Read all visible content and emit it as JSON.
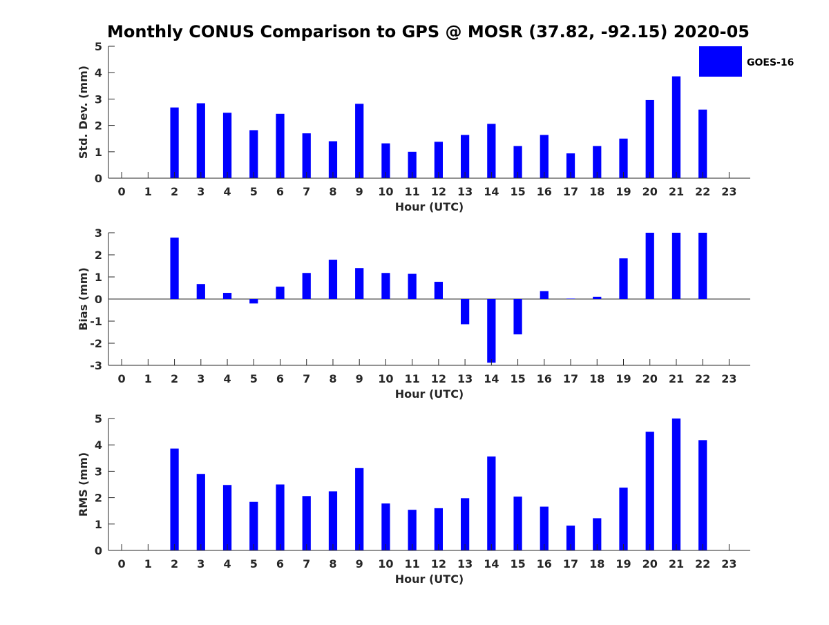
{
  "title": "Monthly CONUS Comparison to GPS @ MOSR (37.82, -92.15) 2020-05",
  "legend": {
    "label": "GOES-16",
    "placement": "top-right",
    "color": "#0000ff"
  },
  "colors": {
    "bar": "#0000ff",
    "axis": "#262626",
    "background": "#ffffff"
  },
  "chart_data": [
    {
      "type": "bar",
      "xlabel": "Hour (UTC)",
      "ylabel": "Std. Dev. (mm)",
      "ylim": [
        0,
        5
      ],
      "yticks": [
        "0",
        "1",
        "2",
        "3",
        "4",
        "5"
      ],
      "categories": [
        "0",
        "1",
        "2",
        "3",
        "4",
        "5",
        "6",
        "7",
        "8",
        "9",
        "10",
        "11",
        "12",
        "13",
        "14",
        "15",
        "16",
        "17",
        "18",
        "19",
        "20",
        "21",
        "22",
        "23"
      ],
      "series": [
        {
          "name": "GOES-16",
          "values": [
            null,
            null,
            2.68,
            2.84,
            2.48,
            1.82,
            2.44,
            1.7,
            1.4,
            2.82,
            1.32,
            1.0,
            1.38,
            1.64,
            2.06,
            1.22,
            1.64,
            0.94,
            1.22,
            1.5,
            2.96,
            3.86,
            2.6,
            null
          ]
        }
      ],
      "grid": false
    },
    {
      "type": "bar",
      "xlabel": "Hour (UTC)",
      "ylabel": "Bias (mm)",
      "ylim": [
        -3,
        3
      ],
      "yticks": [
        "-3",
        "-2",
        "-1",
        "0",
        "1",
        "2",
        "3"
      ],
      "categories": [
        "0",
        "1",
        "2",
        "3",
        "4",
        "5",
        "6",
        "7",
        "8",
        "9",
        "10",
        "11",
        "12",
        "13",
        "14",
        "15",
        "16",
        "17",
        "18",
        "19",
        "20",
        "21",
        "22",
        "23"
      ],
      "series": [
        {
          "name": "GOES-16",
          "values": [
            null,
            null,
            2.78,
            0.68,
            0.28,
            -0.2,
            0.56,
            1.18,
            1.78,
            1.4,
            1.18,
            1.14,
            0.78,
            -1.14,
            -2.88,
            -1.6,
            0.36,
            0.02,
            0.1,
            1.84,
            3.0,
            3.0,
            3.0,
            null
          ]
        }
      ],
      "grid": false
    },
    {
      "type": "bar",
      "xlabel": "Hour (UTC)",
      "ylabel": "RMS (mm)",
      "ylim": [
        0,
        5
      ],
      "yticks": [
        "0",
        "1",
        "2",
        "3",
        "4",
        "5"
      ],
      "categories": [
        "0",
        "1",
        "2",
        "3",
        "4",
        "5",
        "6",
        "7",
        "8",
        "9",
        "10",
        "11",
        "12",
        "13",
        "14",
        "15",
        "16",
        "17",
        "18",
        "19",
        "20",
        "21",
        "22",
        "23"
      ],
      "series": [
        {
          "name": "GOES-16",
          "values": [
            null,
            null,
            3.86,
            2.9,
            2.48,
            1.84,
            2.5,
            2.06,
            2.24,
            3.12,
            1.78,
            1.54,
            1.6,
            1.98,
            3.56,
            2.04,
            1.66,
            0.94,
            1.22,
            2.38,
            4.5,
            5.0,
            4.18,
            null
          ]
        }
      ],
      "grid": false
    }
  ]
}
